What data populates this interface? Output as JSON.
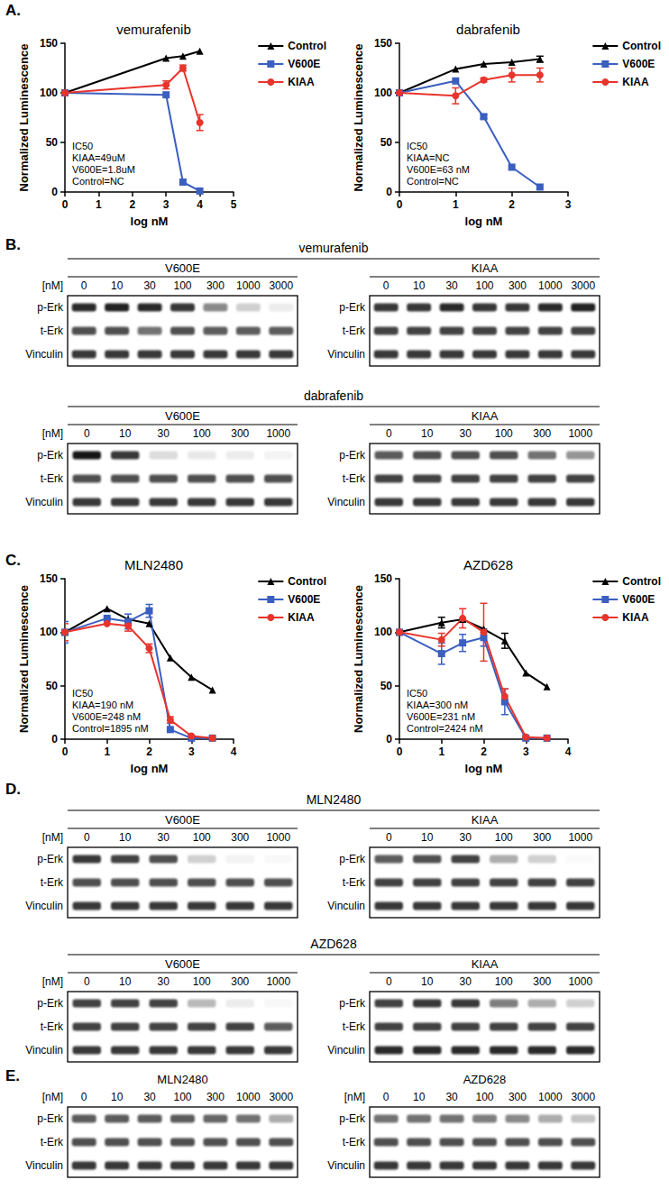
{
  "panel_labels": [
    "A.",
    "B.",
    "C.",
    "D.",
    "E."
  ],
  "chart_data": [
    {
      "type": "line",
      "title": "vemurafenib",
      "x_label": "log nM",
      "y_label": "Normalized Luminescence",
      "annotation": [
        "IC50",
        "KIAA=49uM",
        "V600E=1.8uM",
        "Control=NC"
      ],
      "x": [
        0,
        3,
        3.5,
        4
      ],
      "xlim": [
        0,
        5
      ],
      "xticks": [
        0,
        1,
        2,
        3,
        4,
        5
      ],
      "ylim": [
        0,
        150
      ],
      "yticks": [
        0,
        50,
        100,
        150
      ],
      "grid": false,
      "legend": "right",
      "series": [
        {
          "name": "Control",
          "color": "#000000",
          "marker": "triangle",
          "values": [
            100,
            135,
            137,
            142
          ],
          "errors": [
            0,
            0,
            0,
            0
          ]
        },
        {
          "name": "V600E",
          "color": "#3b5fc0",
          "marker": "square",
          "values": [
            100,
            98,
            10,
            1
          ],
          "errors": [
            0,
            0,
            0,
            0
          ]
        },
        {
          "name": "KIAA",
          "color": "#e8342c",
          "marker": "circle",
          "values": [
            100,
            108,
            125,
            70
          ],
          "errors": [
            0,
            4,
            3,
            8
          ]
        }
      ]
    },
    {
      "type": "line",
      "title": "dabrafenib",
      "x_label": "log nM",
      "y_label": "Normalized Luminescence",
      "annotation": [
        "IC50",
        "KIAA=NC",
        "V600E=63 nM",
        "Control=NC"
      ],
      "x": [
        0,
        1,
        1.5,
        2,
        2.5
      ],
      "xlim": [
        0,
        3
      ],
      "xticks": [
        0,
        1,
        2,
        3
      ],
      "ylim": [
        0,
        150
      ],
      "yticks": [
        0,
        50,
        100,
        150
      ],
      "grid": false,
      "legend": "right",
      "series": [
        {
          "name": "Control",
          "color": "#000000",
          "marker": "triangle",
          "values": [
            100,
            124,
            129,
            131,
            134
          ],
          "errors": [
            0,
            0,
            0,
            0,
            3
          ]
        },
        {
          "name": "V600E",
          "color": "#3b5fc0",
          "marker": "square",
          "values": [
            100,
            112,
            76,
            25,
            5
          ],
          "errors": [
            0,
            0,
            2,
            0,
            0
          ]
        },
        {
          "name": "KIAA",
          "color": "#e8342c",
          "marker": "circle",
          "values": [
            100,
            97,
            113,
            118,
            118
          ],
          "errors": [
            0,
            8,
            2,
            7,
            7
          ]
        }
      ]
    },
    {
      "type": "line",
      "title": "MLN2480",
      "x_label": "log nM",
      "y_label": "Normalized Luminescence",
      "annotation": [
        "IC50",
        "KIAA=190 nM",
        "V600E=248 nM",
        "Control=1895 nM"
      ],
      "x": [
        0,
        1,
        1.5,
        2,
        2.5,
        3,
        3.5
      ],
      "xlim": [
        0,
        4
      ],
      "xticks": [
        0,
        1,
        2,
        3,
        4
      ],
      "ylim": [
        0,
        150
      ],
      "yticks": [
        0,
        50,
        100,
        150
      ],
      "grid": false,
      "legend": "right",
      "series": [
        {
          "name": "Control",
          "color": "#000000",
          "marker": "triangle",
          "values": [
            100,
            122,
            112,
            108,
            76,
            58,
            46
          ],
          "errors": [
            0,
            0,
            0,
            0,
            0,
            0,
            0
          ]
        },
        {
          "name": "V600E",
          "color": "#3b5fc0",
          "marker": "square",
          "values": [
            100,
            113,
            110,
            120,
            9,
            1,
            1
          ],
          "errors": [
            10,
            0,
            7,
            6,
            0,
            0,
            0
          ]
        },
        {
          "name": "KIAA",
          "color": "#e8342c",
          "marker": "circle",
          "values": [
            100,
            108,
            106,
            85,
            18,
            3,
            1
          ],
          "errors": [
            8,
            0,
            5,
            4,
            3,
            0,
            0
          ]
        }
      ]
    },
    {
      "type": "line",
      "title": "AZD628",
      "x_label": "log nM",
      "y_label": "Normalized Luminescence",
      "annotation": [
        "IC50",
        "KIAA=300 nM",
        "V600E=231 nM",
        "Control=2424 nM"
      ],
      "x": [
        0,
        1,
        1.5,
        2,
        2.5,
        3,
        3.5
      ],
      "xlim": [
        0,
        4
      ],
      "xticks": [
        0,
        1,
        2,
        3,
        4
      ],
      "ylim": [
        0,
        150
      ],
      "yticks": [
        0,
        50,
        100,
        150
      ],
      "grid": false,
      "legend": "right",
      "series": [
        {
          "name": "Control",
          "color": "#000000",
          "marker": "triangle",
          "values": [
            100,
            109,
            112,
            103,
            92,
            62,
            49
          ],
          "errors": [
            0,
            5,
            0,
            0,
            7,
            0,
            0
          ]
        },
        {
          "name": "V600E",
          "color": "#3b5fc0",
          "marker": "square",
          "values": [
            100,
            80,
            90,
            95,
            35,
            1,
            1
          ],
          "errors": [
            0,
            10,
            8,
            8,
            12,
            0,
            0
          ]
        },
        {
          "name": "KIAA",
          "color": "#e8342c",
          "marker": "circle",
          "values": [
            100,
            93,
            113,
            100,
            40,
            2,
            1
          ],
          "errors": [
            0,
            6,
            9,
            27,
            7,
            0,
            0
          ]
        }
      ]
    }
  ],
  "blots": [
    {
      "title": "vemurafenib",
      "membranes": [
        {
          "label": "V600E",
          "unit": "[nM]",
          "lanes": [
            0,
            10,
            30,
            100,
            300,
            1000,
            3000
          ],
          "rows": [
            {
              "name": "p-Erk",
              "intensity": [
                0.9,
                0.95,
                0.9,
                0.85,
                0.5,
                0.2,
                0.08
              ]
            },
            {
              "name": "t-Erk",
              "intensity": [
                0.75,
                0.75,
                0.6,
                0.75,
                0.7,
                0.7,
                0.7
              ]
            },
            {
              "name": "Vinculin",
              "intensity": [
                0.85,
                0.85,
                0.85,
                0.85,
                0.85,
                0.85,
                0.85
              ]
            }
          ]
        },
        {
          "label": "KIAA",
          "lanes": [
            0,
            10,
            30,
            100,
            300,
            1000,
            3000
          ],
          "rows": [
            {
              "name": "p-Erk",
              "intensity": [
                0.85,
                0.85,
                0.9,
                0.85,
                0.85,
                0.9,
                0.95
              ]
            },
            {
              "name": "t-Erk",
              "intensity": [
                0.8,
                0.8,
                0.8,
                0.8,
                0.8,
                0.8,
                0.8
              ]
            },
            {
              "name": "Vinculin",
              "intensity": [
                0.85,
                0.85,
                0.85,
                0.85,
                0.85,
                0.85,
                0.85
              ]
            }
          ]
        }
      ]
    },
    {
      "title": "dabrafenib",
      "membranes": [
        {
          "label": "V600E",
          "unit": "[nM]",
          "lanes": [
            0,
            10,
            30,
            100,
            300,
            1000
          ],
          "rows": [
            {
              "name": "p-Erk",
              "intensity": [
                1,
                0.85,
                0.15,
                0.1,
                0.08,
                0.05
              ]
            },
            {
              "name": "t-Erk",
              "intensity": [
                0.75,
                0.75,
                0.75,
                0.75,
                0.75,
                0.75
              ]
            },
            {
              "name": "Vinculin",
              "intensity": [
                0.85,
                0.85,
                0.85,
                0.85,
                0.85,
                0.85
              ]
            }
          ]
        },
        {
          "label": "KIAA",
          "lanes": [
            0,
            10,
            30,
            100,
            300,
            1000
          ],
          "rows": [
            {
              "name": "p-Erk",
              "intensity": [
                0.7,
                0.75,
                0.75,
                0.75,
                0.6,
                0.45
              ]
            },
            {
              "name": "t-Erk",
              "intensity": [
                0.8,
                0.8,
                0.8,
                0.8,
                0.8,
                0.8
              ]
            },
            {
              "name": "Vinculin",
              "intensity": [
                0.85,
                0.85,
                0.85,
                0.85,
                0.85,
                0.85
              ]
            }
          ]
        }
      ]
    },
    {
      "title": "MLN2480",
      "membranes": [
        {
          "label": "V600E",
          "unit": "[nM]",
          "lanes": [
            0,
            10,
            30,
            100,
            300,
            1000
          ],
          "rows": [
            {
              "name": "p-Erk",
              "intensity": [
                0.85,
                0.8,
                0.75,
                0.2,
                0.05,
                0.03
              ]
            },
            {
              "name": "t-Erk",
              "intensity": [
                0.75,
                0.75,
                0.75,
                0.75,
                0.75,
                0.75
              ]
            },
            {
              "name": "Vinculin",
              "intensity": [
                0.85,
                0.85,
                0.85,
                0.85,
                0.85,
                0.85
              ]
            }
          ]
        },
        {
          "label": "KIAA",
          "lanes": [
            0,
            10,
            30,
            100,
            300,
            1000
          ],
          "rows": [
            {
              "name": "p-Erk",
              "intensity": [
                0.7,
                0.75,
                0.8,
                0.35,
                0.2,
                0.02
              ]
            },
            {
              "name": "t-Erk",
              "intensity": [
                0.8,
                0.8,
                0.8,
                0.8,
                0.8,
                0.8
              ]
            },
            {
              "name": "Vinculin",
              "intensity": [
                0.85,
                0.85,
                0.85,
                0.85,
                0.85,
                0.85
              ]
            }
          ]
        }
      ]
    },
    {
      "title": "AZD628",
      "membranes": [
        {
          "label": "V600E",
          "unit": "[nM]",
          "lanes": [
            0,
            10,
            30,
            100,
            300,
            1000
          ],
          "rows": [
            {
              "name": "p-Erk",
              "intensity": [
                0.8,
                0.8,
                0.8,
                0.3,
                0.08,
                0.03
              ]
            },
            {
              "name": "t-Erk",
              "intensity": [
                0.8,
                0.8,
                0.8,
                0.8,
                0.8,
                0.7
              ]
            },
            {
              "name": "Vinculin",
              "intensity": [
                0.85,
                0.85,
                0.85,
                0.85,
                0.85,
                0.85
              ]
            }
          ]
        },
        {
          "label": "KIAA",
          "lanes": [
            0,
            10,
            30,
            100,
            300,
            1000
          ],
          "rows": [
            {
              "name": "p-Erk",
              "intensity": [
                0.8,
                0.85,
                0.85,
                0.55,
                0.35,
                0.2
              ]
            },
            {
              "name": "t-Erk",
              "intensity": [
                0.8,
                0.8,
                0.8,
                0.8,
                0.8,
                0.8
              ]
            },
            {
              "name": "Vinculin",
              "intensity": [
                0.9,
                0.9,
                0.9,
                0.9,
                0.9,
                0.9
              ]
            }
          ]
        }
      ]
    },
    {
      "membranes": [
        {
          "label": "MLN2480",
          "unit": "[nM]",
          "lanes": [
            0,
            10,
            30,
            100,
            300,
            1000,
            3000
          ],
          "rows": [
            {
              "name": "p-Erk",
              "intensity": [
                0.7,
                0.7,
                0.7,
                0.7,
                0.65,
                0.6,
                0.35
              ]
            },
            {
              "name": "t-Erk",
              "intensity": [
                0.75,
                0.75,
                0.75,
                0.75,
                0.75,
                0.75,
                0.75
              ]
            },
            {
              "name": "Vinculin",
              "intensity": [
                0.85,
                0.85,
                0.85,
                0.85,
                0.85,
                0.85,
                0.85
              ]
            }
          ]
        },
        {
          "label": "AZD628",
          "unit": "[nM]",
          "lanes": [
            0,
            10,
            30,
            100,
            300,
            1000,
            3000
          ],
          "rows": [
            {
              "name": "p-Erk",
              "intensity": [
                0.6,
                0.6,
                0.6,
                0.55,
                0.5,
                0.35,
                0.25
              ]
            },
            {
              "name": "t-Erk",
              "intensity": [
                0.75,
                0.75,
                0.75,
                0.75,
                0.75,
                0.75,
                0.75
              ]
            },
            {
              "name": "Vinculin",
              "intensity": [
                0.85,
                0.85,
                0.85,
                0.85,
                0.85,
                0.85,
                0.85
              ]
            }
          ]
        }
      ]
    }
  ]
}
